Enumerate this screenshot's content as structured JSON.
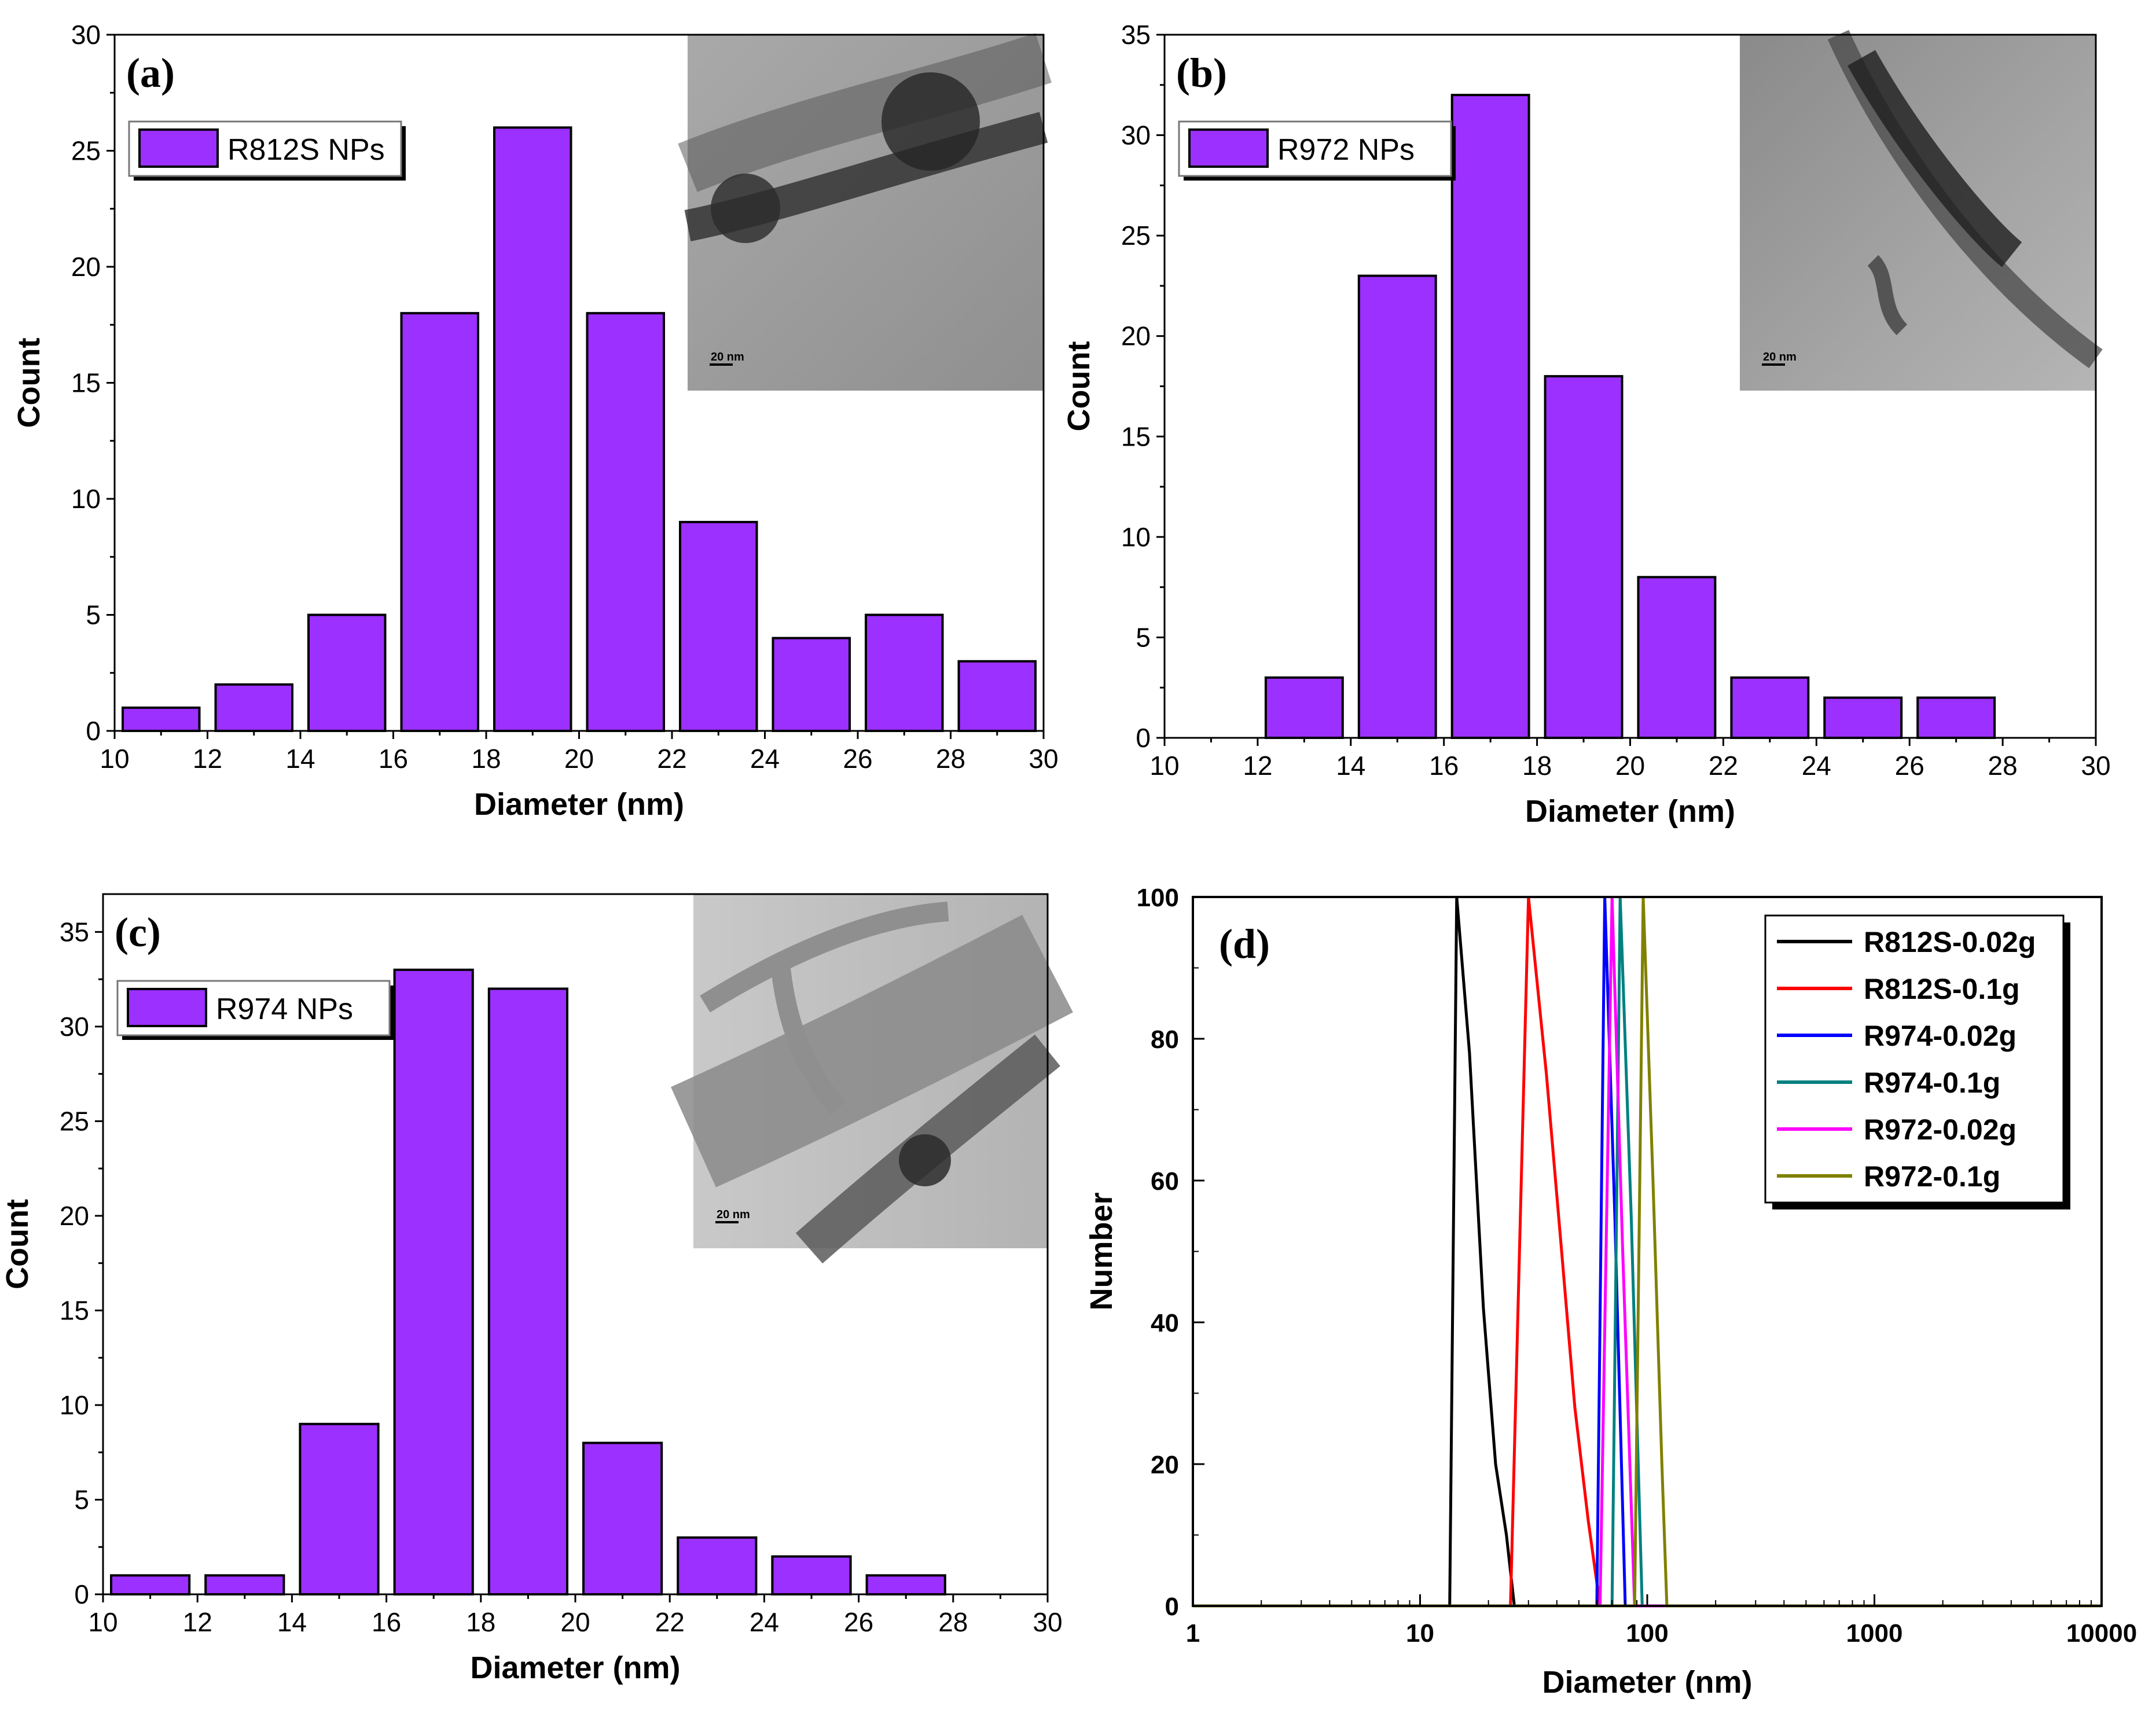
{
  "colors": {
    "bar_fill": "#9b30ff",
    "bar_stroke": "#000000",
    "axis": "#000000"
  },
  "chart_data": [
    {
      "id": "a",
      "type": "bar",
      "panel_label": "(a)",
      "legend": "R812S NPs",
      "xlabel": "Diameter (nm)",
      "ylabel": "Count",
      "xlim": [
        10,
        30
      ],
      "ylim": [
        0,
        30
      ],
      "xticks": [
        "10",
        "12",
        "14",
        "16",
        "18",
        "20",
        "22",
        "24",
        "26",
        "28",
        "30"
      ],
      "yticks": [
        "0",
        "5",
        "10",
        "15",
        "20",
        "25",
        "30"
      ],
      "bin_width": 2,
      "bin_starts": [
        10,
        12,
        14,
        16,
        18,
        20,
        22,
        24,
        26,
        28
      ],
      "values": [
        1,
        2,
        5,
        18,
        26,
        18,
        9,
        4,
        5,
        3
      ],
      "inset": {
        "scale_bar": "20 nm"
      }
    },
    {
      "id": "b",
      "type": "bar",
      "panel_label": "(b)",
      "legend": "R972 NPs",
      "xlabel": "Diameter (nm)",
      "ylabel": "Count",
      "xlim": [
        10,
        30
      ],
      "ylim": [
        0,
        35
      ],
      "xticks": [
        "10",
        "12",
        "14",
        "16",
        "18",
        "20",
        "22",
        "24",
        "26",
        "28",
        "30"
      ],
      "yticks": [
        "0",
        "5",
        "10",
        "15",
        "20",
        "25",
        "30",
        "35"
      ],
      "bin_width": 2,
      "bin_starts": [
        12,
        14,
        16,
        18,
        20,
        22,
        24,
        26
      ],
      "values": [
        3,
        23,
        32,
        18,
        8,
        3,
        2,
        2
      ],
      "inset": {
        "scale_bar": "20 nm"
      }
    },
    {
      "id": "c",
      "type": "bar",
      "panel_label": "(c)",
      "legend": "R974 NPs",
      "xlabel": "Diameter (nm)",
      "ylabel": "Count",
      "xlim": [
        10,
        30
      ],
      "ylim": [
        0,
        37
      ],
      "xticks": [
        "10",
        "12",
        "14",
        "16",
        "18",
        "20",
        "22",
        "24",
        "26",
        "28",
        "30"
      ],
      "yticks": [
        "0",
        "5",
        "10",
        "15",
        "20",
        "25",
        "30",
        "35"
      ],
      "bin_width": 2,
      "bin_starts": [
        10,
        12,
        14,
        16,
        18,
        20,
        22,
        24,
        26
      ],
      "values": [
        1,
        1,
        9,
        33,
        32,
        8,
        3,
        2,
        1
      ],
      "inset": {
        "scale_bar": "20 nm"
      }
    },
    {
      "id": "d",
      "type": "line",
      "panel_label": "(d)",
      "xlabel": "Diameter (nm)",
      "ylabel": "Number",
      "xscale": "log",
      "xlim": [
        1,
        10000
      ],
      "ylim": [
        0,
        100
      ],
      "xticks": [
        "1",
        "10",
        "100",
        "1000",
        "10000"
      ],
      "yticks": [
        "0",
        "20",
        "40",
        "60",
        "80",
        "100"
      ],
      "series": [
        {
          "name": "R812S-0.02g",
          "color": "#000000",
          "x": [
            1,
            13.5,
            14.5,
            16.5,
            19,
            21.5,
            24,
            26,
            10000
          ],
          "y": [
            0,
            0,
            100,
            78,
            42,
            20,
            10,
            0,
            0
          ]
        },
        {
          "name": "R812S-0.1g",
          "color": "#ff0000",
          "x": [
            1,
            25,
            30,
            36,
            42,
            48,
            55,
            62,
            10000
          ],
          "y": [
            0,
            0,
            100,
            75,
            50,
            28,
            12,
            0,
            0
          ]
        },
        {
          "name": "R974-0.02g",
          "color": "#0000ff",
          "x": [
            1,
            60,
            65,
            72,
            80,
            10000
          ],
          "y": [
            0,
            0,
            100,
            55,
            0,
            0
          ]
        },
        {
          "name": "R974-0.1g",
          "color": "#008080",
          "x": [
            1,
            70,
            76,
            85,
            95,
            10000
          ],
          "y": [
            0,
            0,
            100,
            55,
            0,
            0
          ]
        },
        {
          "name": "R972-0.02g",
          "color": "#ff00ff",
          "x": [
            1,
            62,
            70,
            78,
            88,
            10000
          ],
          "y": [
            0,
            0,
            100,
            50,
            0,
            0
          ]
        },
        {
          "name": "R972-0.1g",
          "color": "#808000",
          "x": [
            1,
            88,
            96,
            106,
            116,
            122,
            10000
          ],
          "y": [
            0,
            0,
            100,
            60,
            20,
            0,
            0
          ]
        }
      ]
    }
  ]
}
